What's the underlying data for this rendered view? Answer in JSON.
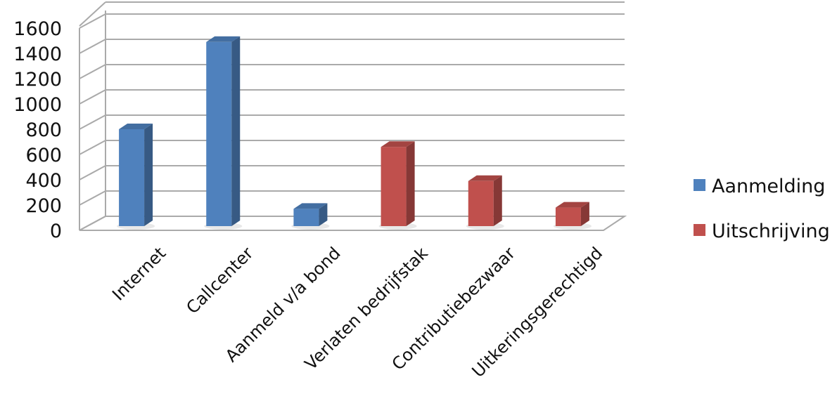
{
  "chart_data": {
    "type": "bar",
    "title": "",
    "xlabel": "",
    "ylabel": "",
    "ylim": [
      0,
      1600
    ],
    "yticks": [
      "0",
      "200",
      "400",
      "600",
      "800",
      "1000",
      "1200",
      "1400",
      "1600"
    ],
    "grid": true,
    "legend_position": "right",
    "categories": [
      "Internet",
      "Callcenter",
      "Aanmeld v/a bond",
      "Verlaten bedrijfstak",
      "Contributiebezwaar",
      "Uitkeringsgerechtigd"
    ],
    "series": [
      {
        "name": "Aanmelding",
        "color": "#4f81bd",
        "values": [
          800,
          1490,
          170,
          null,
          null,
          null
        ]
      },
      {
        "name": "Uitschrijving",
        "color": "#c0504d",
        "values": [
          null,
          null,
          null,
          660,
          390,
          180
        ]
      }
    ]
  }
}
